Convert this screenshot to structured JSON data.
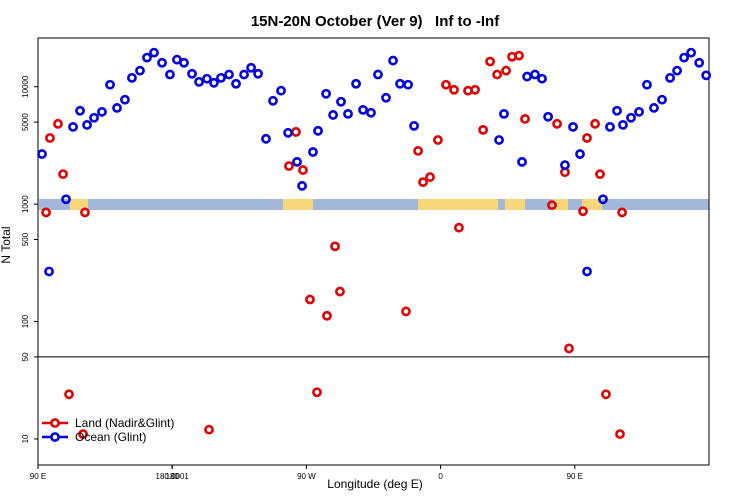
{
  "chart_data": {
    "type": "scatter",
    "title": "15N-20N October (Ver 9)   Inf to -Inf",
    "xlabel": "Longitude (deg E)",
    "ylabel": "N Total",
    "xlim": [
      90,
      540
    ],
    "ylim": [
      6,
      26000
    ],
    "log_y": true,
    "legend": "bottom-left",
    "xticks": [
      {
        "value": 90,
        "label": "90 E"
      },
      180,
      {
        "value": 270,
        "label": "90 W"
      },
      {
        "value": 360,
        "label": "0"
      },
      {
        "value": 450,
        "label": "90 E"
      },
      180.0001
    ],
    "yticks": [
      10,
      50,
      100,
      500,
      1000,
      5000,
      10000
    ],
    "series": [
      {
        "name": "Land (Nadir&Glint)",
        "color": "#e00000",
        "x": [
          95.4,
          98,
          103.4,
          106.8,
          110.8,
          121.5,
          120.2,
          204.7,
          258.3,
          263,
          267.7,
          272.4,
          277.1,
          283.8,
          289.2,
          292.5,
          336.8,
          344.9,
          348.2,
          352.9,
          358.2,
          363.6,
          369,
          372.3,
          378.4,
          383.1,
          388.5,
          393.2,
          397.9,
          403.9,
          407.9,
          412.6,
          416.6,
          434.7,
          438.1,
          443.4,
          446.1,
          455.5,
          458.2,
          463.6,
          466.9,
          470.9,
          481.7,
          480.3
        ],
        "values": [
          850,
          3660,
          4830,
          1800,
          24,
          850,
          11,
          12,
          2110,
          4120,
          1950,
          154,
          25,
          112,
          437,
          180,
          122,
          2840,
          1540,
          1700,
          3520,
          10400,
          9420,
          630,
          9250,
          9420,
          4290,
          16400,
          12700,
          13700,
          18000,
          18400,
          5320,
          980,
          4830,
          1870,
          59,
          870,
          3660,
          4830,
          1800,
          24,
          850,
          11
        ]
      },
      {
        "name": "Ocean (Glint)",
        "color": "#0000e0",
        "x": [
          92.7,
          97.4,
          108.8,
          113.5,
          118.2,
          122.9,
          127.6,
          132.9,
          138.3,
          143,
          148.3,
          153,
          158.4,
          163.1,
          167.8,
          173.2,
          178.5,
          183.2,
          187.9,
          193.3,
          198,
          203.3,
          208,
          212.7,
          218.1,
          222.8,
          228.2,
          232.9,
          237.6,
          242.9,
          247.6,
          253,
          257.7,
          263.7,
          267.1,
          274.4,
          277.8,
          283.2,
          287.9,
          293.2,
          297.9,
          303.3,
          308,
          313.3,
          318,
          323.4,
          328.1,
          332.8,
          338.2,
          342.2,
          402.5,
          399.2,
          414.6,
          418,
          423.3,
          428,
          432.1,
          443.4,
          448.8,
          453.5,
          458.2,
          468.9,
          473.6,
          478.3,
          482.3,
          487.7,
          493.1,
          498.4,
          503.1,
          508.5,
          513.9,
          518.6,
          523.3,
          528,
          533.4,
          538.1
        ],
        "values": [
          2670,
          267,
          1100,
          4550,
          6240,
          4730,
          5440,
          6110,
          10400,
          6600,
          7750,
          11900,
          13700,
          17700,
          19500,
          16000,
          12700,
          17000,
          16000,
          12900,
          11000,
          11700,
          10800,
          11900,
          12700,
          10600,
          12700,
          14500,
          12900,
          3600,
          7590,
          9250,
          4050,
          2290,
          1430,
          2780,
          4210,
          8710,
          5750,
          7450,
          5870,
          10600,
          6350,
          6000,
          12700,
          8050,
          16700,
          10600,
          10400,
          4640,
          5870,
          3520,
          2290,
          12200,
          12700,
          11700,
          5550,
          2150,
          4550,
          2670,
          267,
          1100,
          4550,
          6240,
          4730,
          5440,
          6110,
          10400,
          6600,
          7750,
          11900,
          13700,
          17700,
          19500,
          16000,
          12500
        ]
      }
    ]
  }
}
